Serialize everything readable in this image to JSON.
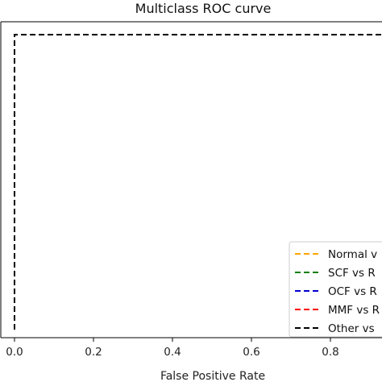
{
  "chart_data": {
    "type": "line",
    "title": "Multiclass ROC curve",
    "xlabel": "False Positive Rate",
    "ylabel": "",
    "xlim": [
      -0.03,
      0.93
    ],
    "ylim": [
      -0.02,
      1.02
    ],
    "xticks": [
      0.0,
      0.2,
      0.4,
      0.6,
      0.8
    ],
    "xtick_labels": [
      "0.0",
      "0.2",
      "0.4",
      "0.6",
      "0.8"
    ],
    "grid": false,
    "legend_position": "lower-right",
    "series": [
      {
        "name": "Normal vs Rest",
        "display_name": "Normal v",
        "color": "#ffa500",
        "style": "dashed",
        "x": [
          0.0,
          0.0,
          1.0
        ],
        "y": [
          0.0,
          1.0,
          1.0
        ]
      },
      {
        "name": "SCF vs Rest",
        "display_name": "SCF vs R",
        "color": "#008000",
        "style": "dashed",
        "x": [
          0.0,
          0.0,
          1.0
        ],
        "y": [
          0.0,
          1.0,
          1.0
        ]
      },
      {
        "name": "OCF vs Rest",
        "display_name": "OCF vs R",
        "color": "#0000cc",
        "style": "dashed",
        "x": [
          0.0,
          0.0,
          1.0
        ],
        "y": [
          0.0,
          1.0,
          1.0
        ]
      },
      {
        "name": "MMF vs Rest",
        "display_name": "MMF vs R",
        "color": "#ff0000",
        "style": "dashed",
        "x": [
          0.0,
          0.0,
          1.0
        ],
        "y": [
          0.0,
          1.0,
          1.0
        ]
      },
      {
        "name": "Other vs Rest",
        "display_name": "Other vs",
        "color": "#000000",
        "style": "dashed",
        "x": [
          0.0,
          0.0,
          1.0
        ],
        "y": [
          0.0,
          1.0,
          1.0
        ]
      }
    ]
  }
}
